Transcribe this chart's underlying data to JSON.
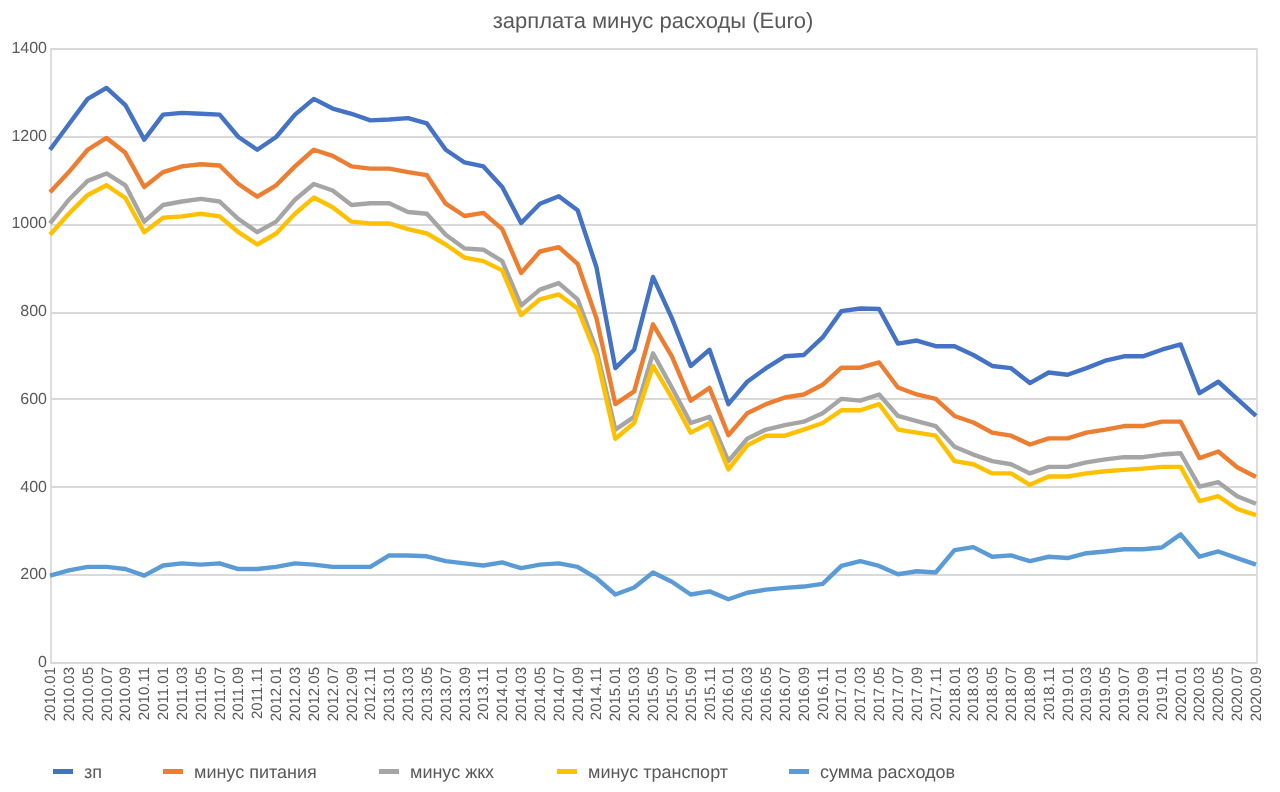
{
  "chart_data": {
    "type": "line",
    "title": "зарплата минус расходы (Euro)",
    "categories": [
      "2010.01",
      "2010.03",
      "2010.05",
      "2010.07",
      "2010.09",
      "2010.11",
      "2011.01",
      "2011.03",
      "2011.05",
      "2011.07",
      "2011.09",
      "2011.11",
      "2012.01",
      "2012.03",
      "2012.05",
      "2012.07",
      "2012.09",
      "2012.11",
      "2013.01",
      "2013.03",
      "2013.05",
      "2013.07",
      "2013.09",
      "2013.11",
      "2014.01",
      "2014.03",
      "2014.05",
      "2014.07",
      "2014.09",
      "2014.11",
      "2015.01",
      "2015.03",
      "2015.05",
      "2015.07",
      "2015.09",
      "2015.11",
      "2016.01",
      "2016.03",
      "2016.05",
      "2016.07",
      "2016.09",
      "2016.11",
      "2017.01",
      "2017.03",
      "2017.05",
      "2017.07",
      "2017.09",
      "2017.11",
      "2018.01",
      "2018.03",
      "2018.05",
      "2018.07",
      "2018.09",
      "2018.11",
      "2019.01",
      "2019.03",
      "2019.05",
      "2019.07",
      "2019.09",
      "2019.11",
      "2020.01",
      "2020.03",
      "2020.05",
      "2020.07",
      "2020.09"
    ],
    "series": [
      {
        "name": "зп",
        "color": "#4472c4",
        "values": [
          1168,
          1226,
          1284,
          1309,
          1270,
          1191,
          1248,
          1252,
          1250,
          1248,
          1197,
          1168,
          1197,
          1248,
          1284,
          1262,
          1250,
          1235,
          1237,
          1240,
          1228,
          1168,
          1139,
          1130,
          1083,
          1001,
          1045,
          1062,
          1030,
          900,
          670,
          712,
          878,
          784,
          675,
          712,
          588,
          639,
          670,
          697,
          700,
          740,
          800,
          806,
          805,
          726,
          733,
          720,
          720,
          700,
          675,
          670,
          636,
          660,
          655,
          670,
          687,
          697,
          697,
          712,
          724,
          613,
          639,
          600,
          561
        ]
      },
      {
        "name": "минус питания",
        "color": "#ed7d31",
        "values": [
          1071,
          1117,
          1168,
          1195,
          1161,
          1083,
          1117,
          1130,
          1135,
          1132,
          1090,
          1061,
          1087,
          1130,
          1168,
          1154,
          1130,
          1125,
          1125,
          1117,
          1110,
          1045,
          1017,
          1024,
          987,
          887,
          936,
          946,
          908,
          784,
          588,
          617,
          770,
          697,
          596,
          625,
          517,
          567,
          588,
          603,
          610,
          632,
          671,
          671,
          683,
          626,
          610,
          600,
          561,
          546,
          523,
          516,
          496,
          510,
          510,
          523,
          530,
          538,
          538,
          548,
          548,
          465,
          480,
          444,
          422
        ]
      },
      {
        "name": "минус жкх",
        "color": "#a5a5a5",
        "values": [
          1000,
          1054,
          1097,
          1114,
          1087,
          1004,
          1042,
          1050,
          1056,
          1050,
          1010,
          980,
          1004,
          1054,
          1090,
          1075,
          1042,
          1046,
          1046,
          1026,
          1022,
          974,
          943,
          940,
          914,
          813,
          849,
          864,
          827,
          712,
          530,
          559,
          704,
          626,
          545,
          559,
          458,
          509,
          530,
          540,
          548,
          567,
          600,
          596,
          610,
          561,
          549,
          538,
          491,
          473,
          458,
          451,
          430,
          445,
          445,
          455,
          462,
          467,
          467,
          473,
          476,
          400,
          410,
          378,
          361
        ]
      },
      {
        "name": "минус транспорт",
        "color": "#ffc000",
        "values": [
          974,
          1022,
          1065,
          1087,
          1058,
          980,
          1013,
          1016,
          1022,
          1016,
          980,
          952,
          977,
          1022,
          1059,
          1037,
          1004,
          1000,
          1000,
          987,
          977,
          952,
          922,
          914,
          893,
          791,
          827,
          838,
          806,
          699,
          509,
          545,
          675,
          603,
          523,
          545,
          439,
          494,
          516,
          516,
          530,
          545,
          574,
          574,
          588,
          530,
          523,
          516,
          458,
          451,
          430,
          430,
          404,
          423,
          423,
          430,
          435,
          438,
          441,
          445,
          445,
          367,
          378,
          349,
          335
        ]
      },
      {
        "name": "сумма расходов",
        "color": "#5b9bd5",
        "values": [
          197,
          209,
          217,
          217,
          212,
          197,
          220,
          225,
          222,
          225,
          212,
          212,
          217,
          225,
          222,
          217,
          217,
          217,
          243,
          243,
          241,
          230,
          225,
          220,
          227,
          214,
          222,
          225,
          217,
          191,
          154,
          170,
          204,
          183,
          154,
          161,
          143,
          158,
          165,
          169,
          172,
          178,
          219,
          230,
          219,
          200,
          207,
          204,
          255,
          262,
          240,
          243,
          230,
          240,
          237,
          248,
          252,
          257,
          257,
          261,
          291,
          240,
          252,
          237,
          222
        ]
      }
    ],
    "ylim": [
      0,
      1400
    ],
    "yticks": [
      0,
      200,
      400,
      600,
      800,
      1000,
      1200,
      1400
    ],
    "grid": "y",
    "legend": "bottom"
  }
}
